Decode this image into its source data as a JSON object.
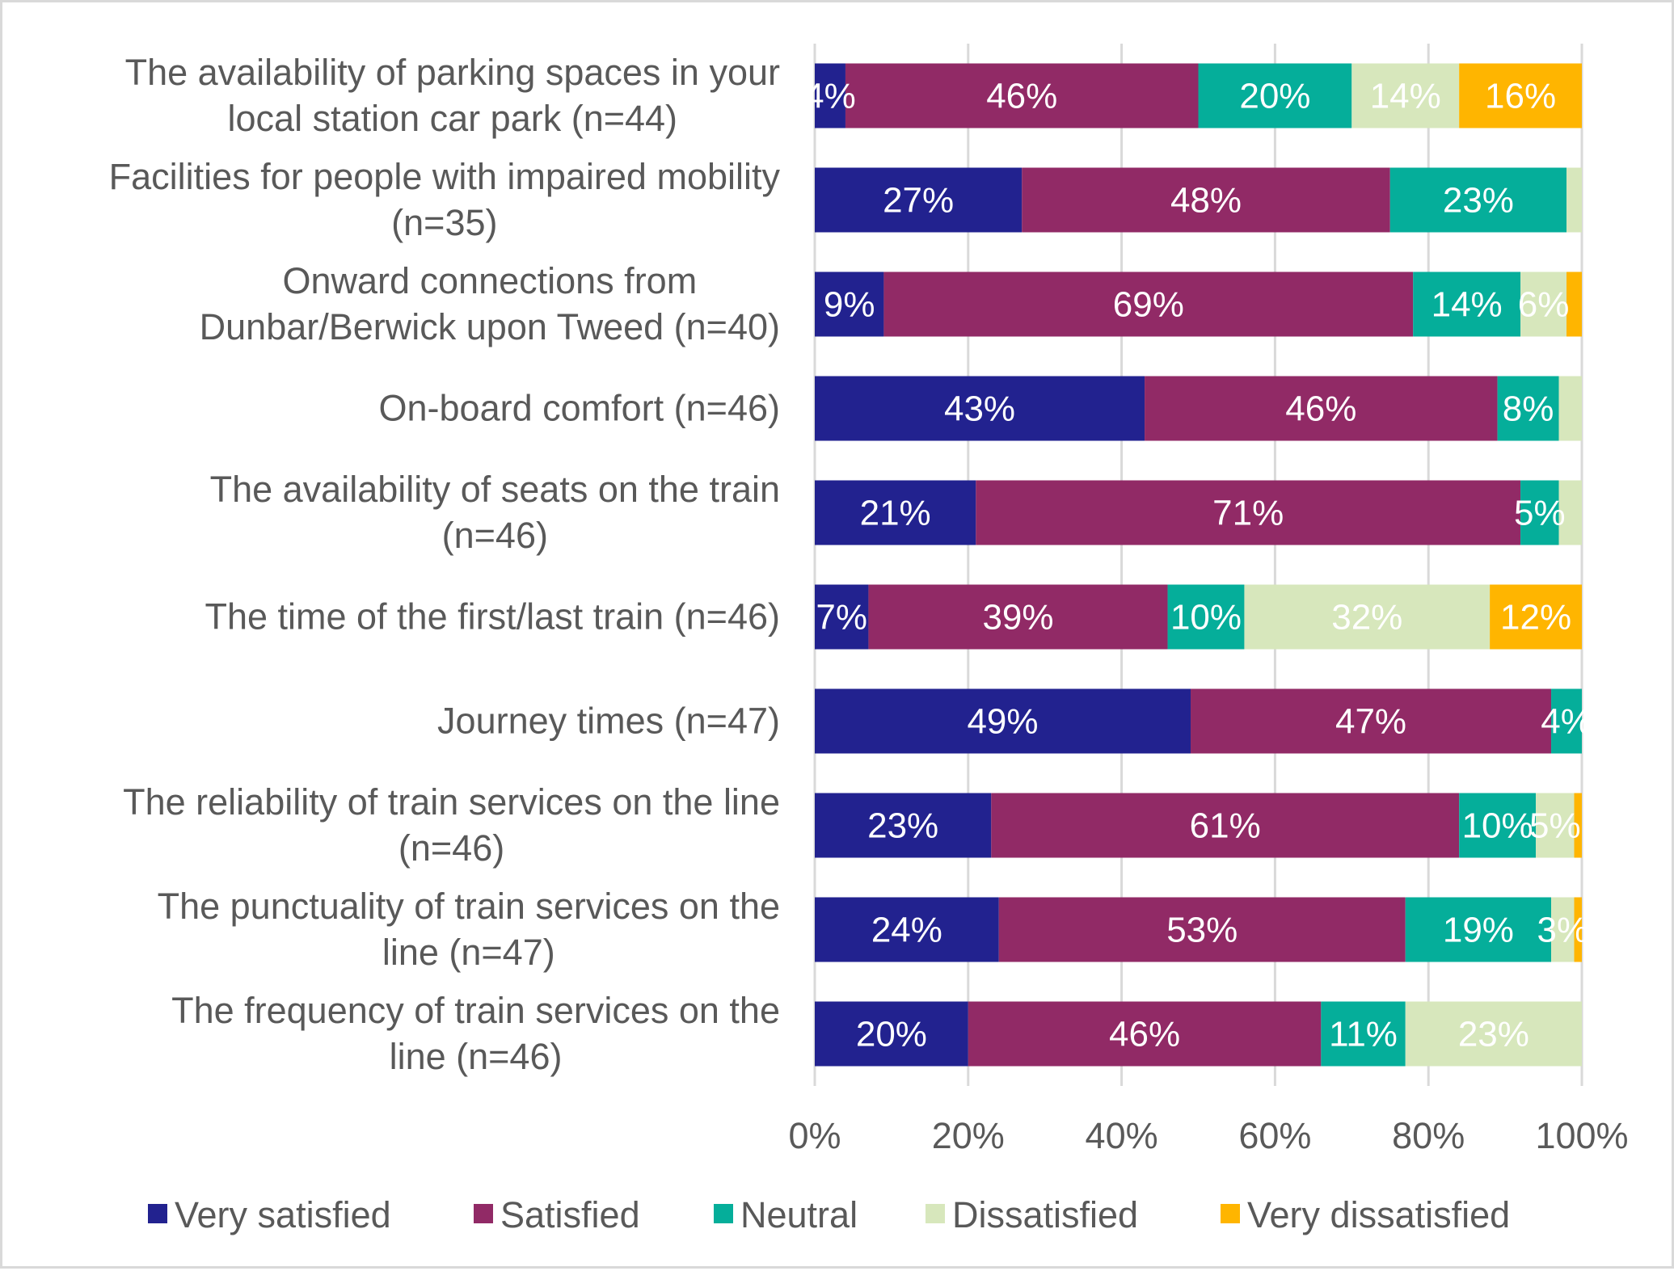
{
  "chart_data": {
    "type": "bar",
    "orientation": "horizontal",
    "stacked": "100%",
    "title": "",
    "xlabel": "",
    "ylabel": "",
    "xlim": [
      0,
      100
    ],
    "x_ticks": [
      "0%",
      "20%",
      "40%",
      "60%",
      "80%",
      "100%"
    ],
    "grid": true,
    "legend_position": "bottom",
    "categories": [
      [
        "The availability of parking spaces in your",
        "local station car park (n=44)"
      ],
      [
        "Facilities for people with impaired mobility",
        "(n=35)"
      ],
      [
        "Onward connections from",
        "Dunbar/Berwick upon Tweed (n=40)"
      ],
      [
        "On-board comfort (n=46)"
      ],
      [
        "The availability of seats on the train",
        "(n=46)"
      ],
      [
        "The time of the first/last train (n=46)"
      ],
      [
        "Journey times (n=47)"
      ],
      [
        "The reliability of train services on the line",
        "(n=46)"
      ],
      [
        "The punctuality of train services on the",
        "line (n=47)"
      ],
      [
        "The frequency of train services on the",
        "line (n=46)"
      ]
    ],
    "series": [
      {
        "name": "Very satisfied",
        "color": "#22228F",
        "values": [
          4,
          27,
          9,
          43,
          21,
          7,
          49,
          23,
          24,
          20
        ],
        "labels": [
          "4%",
          "27%",
          "9%",
          "43%",
          "21%",
          "7%",
          "49%",
          "23%",
          "24%",
          "20%"
        ]
      },
      {
        "name": "Satisfied",
        "color": "#912A66",
        "values": [
          46,
          48,
          69,
          46,
          71,
          39,
          47,
          61,
          53,
          46
        ],
        "labels": [
          "46%",
          "48%",
          "69%",
          "46%",
          "71%",
          "39%",
          "47%",
          "61%",
          "53%",
          "46%"
        ]
      },
      {
        "name": "Neutral",
        "color": "#05AE9A",
        "values": [
          20,
          23,
          14,
          8,
          5,
          10,
          4,
          10,
          19,
          11
        ],
        "labels": [
          "20%",
          "23%",
          "14%",
          "8%",
          "5%",
          "10%",
          "4%",
          "10%",
          "19%",
          "11%"
        ]
      },
      {
        "name": "Dissatisfied",
        "color": "#D7E7BC",
        "values": [
          14,
          2,
          6,
          3,
          3,
          32,
          0,
          5,
          3,
          23
        ],
        "labels": [
          "14%",
          "",
          "6%",
          "",
          "",
          "32%",
          "",
          "5%",
          "3%",
          "23%"
        ]
      },
      {
        "name": "Very dissatisfied",
        "color": "#FFB500",
        "values": [
          16,
          0,
          2,
          0,
          0,
          12,
          0,
          1,
          1,
          0
        ],
        "labels": [
          "16%",
          "",
          "",
          "",
          "",
          "12%",
          "",
          "",
          "",
          ""
        ]
      }
    ]
  },
  "colors": {
    "gridline": "#d9d9d9",
    "text": "#595959",
    "data_label": "#ffffff",
    "border": "#d9d9d9"
  }
}
